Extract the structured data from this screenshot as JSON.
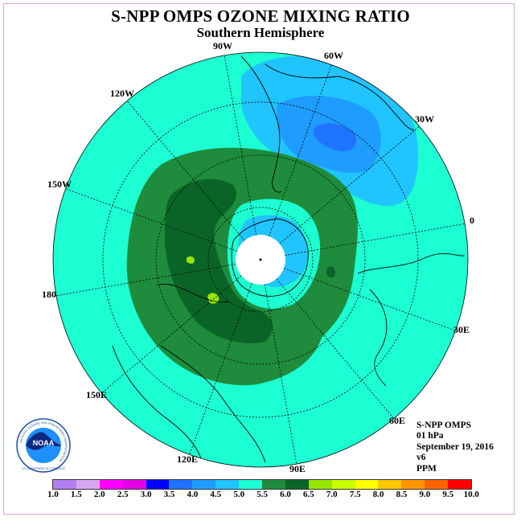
{
  "title": "S-NPP OMPS OZONE MIXING RATIO",
  "subtitle": "Southern Hemisphere",
  "longitude_labels": [
    "90W",
    "60W",
    "30W",
    "0",
    "30E",
    "60E",
    "90E",
    "120E",
    "150E",
    "180",
    "150W",
    "120W"
  ],
  "info": {
    "product": "S-NPP OMPS",
    "level": "01 hPa",
    "date": "September 19, 2016",
    "version": "v6",
    "units": "PPM"
  },
  "legend": {
    "labels": [
      "1.0",
      "1.5",
      "2.0",
      "2.5",
      "3.0",
      "3.5",
      "4.0",
      "4.5",
      "5.0",
      "5.5",
      "6.0",
      "6.5",
      "7.0",
      "7.5",
      "8.0",
      "8.5",
      "9.0",
      "9.5",
      "10.0"
    ],
    "colors": [
      "#b27ff0",
      "#d7a6f0",
      "#ff00ff",
      "#e600e6",
      "#0000ff",
      "#1e73ff",
      "#1e9cff",
      "#20c4ff",
      "#1cffd2",
      "#1e8c3c",
      "#0a6428",
      "#96e600",
      "#c8ff00",
      "#ffff00",
      "#ffc800",
      "#ff9600",
      "#ff6400",
      "#ff0000",
      "#8b5a3c"
    ]
  },
  "logo": {
    "text": "NOAA",
    "ring_text": "NATIONAL OCEANIC AND ATMOSPHERIC ADMINISTRATION",
    "bottom_text": "U.S. DEPARTMENT OF COMMERCE"
  },
  "colors": {
    "background_field": "#1cffd2",
    "light_blue": "#20c4ff",
    "mid_blue": "#1e9cff",
    "dark_blue": "#1e73ff",
    "green": "#1e8c3c",
    "dark_green": "#0a6428",
    "lime": "#96e600"
  }
}
